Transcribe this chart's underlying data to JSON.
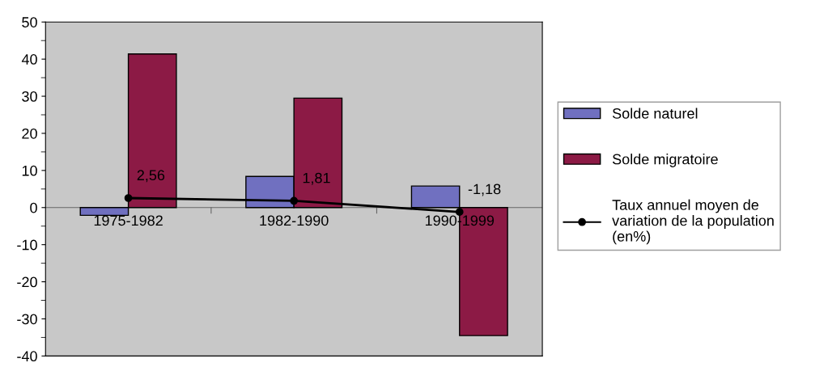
{
  "chart_data": {
    "type": "bar",
    "categories": [
      "1975-1982",
      "1982-1990",
      "1990-1999"
    ],
    "series": [
      {
        "name": "Solde naturel",
        "color": "#7070c0",
        "values": [
          -2.1,
          8.4,
          5.8
        ]
      },
      {
        "name": "Solde migratoire",
        "color": "#8c1a45",
        "values": [
          41.4,
          29.5,
          -34.5
        ]
      },
      {
        "name": "Taux annuel moyen de variation de la population (en%)",
        "type": "line",
        "color": "#000000",
        "marker": "circle",
        "values": [
          2.56,
          1.81,
          -1.18
        ],
        "value_labels": [
          "2,56",
          "1,81",
          "-1,18"
        ]
      }
    ],
    "ylim": [
      -40,
      50
    ],
    "yticks": [
      -40,
      -30,
      -20,
      -10,
      0,
      10,
      20,
      30,
      40,
      50
    ],
    "grid": false,
    "legend": "right"
  }
}
